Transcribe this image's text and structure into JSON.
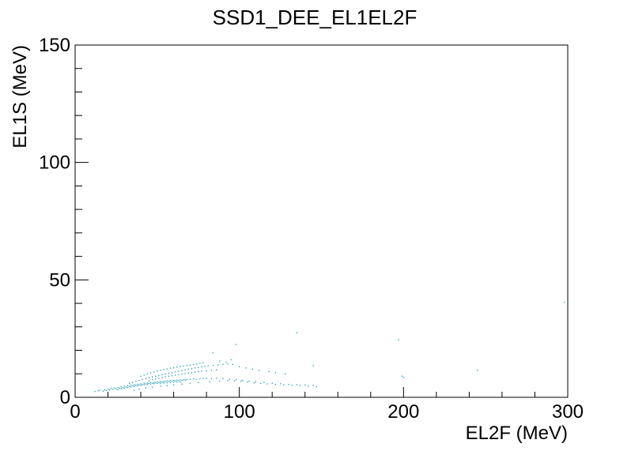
{
  "chart_data": {
    "type": "scatter",
    "title": "SSD1_DEE_EL1EL2F",
    "xlabel": "EL2F (MeV)",
    "ylabel": "EL1S (MeV)",
    "xlim": [
      0,
      300
    ],
    "ylim": [
      0,
      150
    ],
    "x_major_ticks": [
      0,
      100,
      200,
      300
    ],
    "x_tick_labels": [
      "0",
      "100",
      "200",
      "300"
    ],
    "y_major_ticks": [
      0,
      50,
      100,
      150
    ],
    "y_tick_labels": [
      "0",
      "50",
      "100",
      "150"
    ],
    "grid": false,
    "legend": "none",
    "marker_color": "#1496b4",
    "series": [
      {
        "points": [
          [
            12,
            2.5
          ],
          [
            14,
            2.8
          ],
          [
            15,
            3.0
          ],
          [
            17,
            2.6
          ],
          [
            18,
            3.2
          ],
          [
            19,
            2.9
          ],
          [
            20,
            3.5
          ],
          [
            21,
            3.1
          ],
          [
            22,
            3.8
          ],
          [
            23,
            3.4
          ],
          [
            24,
            4.0
          ],
          [
            25,
            3.6
          ],
          [
            26,
            4.2
          ],
          [
            27,
            3.9
          ],
          [
            28,
            4.5
          ],
          [
            29,
            4.1
          ],
          [
            30,
            4.8
          ],
          [
            31,
            4.3
          ],
          [
            32,
            5.0
          ],
          [
            33,
            4.6
          ],
          [
            34,
            5.2
          ],
          [
            35,
            4.9
          ],
          [
            36,
            5.4
          ],
          [
            37,
            5.1
          ],
          [
            38,
            5.6
          ],
          [
            39,
            5.3
          ],
          [
            40,
            5.8
          ],
          [
            41,
            5.5
          ],
          [
            42,
            6.0
          ],
          [
            43,
            5.7
          ],
          [
            44,
            6.1
          ],
          [
            45,
            5.9
          ],
          [
            46,
            6.3
          ],
          [
            47,
            6.0
          ],
          [
            48,
            6.4
          ],
          [
            49,
            6.2
          ],
          [
            50,
            6.6
          ],
          [
            51,
            6.3
          ],
          [
            52,
            6.7
          ],
          [
            53,
            6.5
          ],
          [
            54,
            6.8
          ],
          [
            55,
            6.6
          ],
          [
            56,
            7.0
          ],
          [
            57,
            6.8
          ],
          [
            58,
            7.1
          ],
          [
            59,
            6.9
          ],
          [
            60,
            7.2
          ],
          [
            61,
            7.0
          ],
          [
            62,
            7.3
          ],
          [
            63,
            7.1
          ],
          [
            64,
            7.4
          ],
          [
            65,
            7.2
          ],
          [
            66,
            7.5
          ],
          [
            67,
            7.3
          ],
          [
            68,
            7.6
          ],
          [
            70,
            7.7
          ],
          [
            72,
            7.8
          ],
          [
            74,
            7.6
          ],
          [
            76,
            7.9
          ],
          [
            78,
            8.0
          ],
          [
            80,
            8.1
          ],
          [
            83,
            7.9
          ],
          [
            86,
            8.2
          ],
          [
            90,
            8.0
          ],
          [
            94,
            7.8
          ],
          [
            98,
            7.5
          ],
          [
            102,
            7.2
          ],
          [
            106,
            6.9
          ],
          [
            110,
            6.6
          ],
          [
            115,
            6.3
          ],
          [
            120,
            6.0
          ],
          [
            125,
            5.8
          ],
          [
            130,
            5.5
          ],
          [
            135,
            5.4
          ],
          [
            140,
            5.2
          ],
          [
            145,
            5.0
          ],
          [
            26,
            3.2
          ],
          [
            28,
            3.6
          ],
          [
            30,
            3.9
          ],
          [
            32,
            4.2
          ],
          [
            34,
            4.4
          ],
          [
            36,
            4.7
          ],
          [
            38,
            4.9
          ],
          [
            40,
            5.1
          ],
          [
            42,
            5.3
          ],
          [
            44,
            5.5
          ],
          [
            46,
            5.6
          ],
          [
            48,
            5.8
          ],
          [
            50,
            5.9
          ],
          [
            52,
            6.0
          ],
          [
            54,
            6.1
          ],
          [
            56,
            6.2
          ],
          [
            58,
            6.3
          ],
          [
            60,
            6.4
          ],
          [
            62,
            6.5
          ],
          [
            64,
            6.5
          ],
          [
            33,
            6.0
          ],
          [
            35,
            6.4
          ],
          [
            37,
            6.8
          ],
          [
            39,
            7.2
          ],
          [
            41,
            7.6
          ],
          [
            43,
            8.0
          ],
          [
            45,
            8.4
          ],
          [
            47,
            8.7
          ],
          [
            49,
            9.0
          ],
          [
            51,
            9.3
          ],
          [
            53,
            9.6
          ],
          [
            55,
            9.9
          ],
          [
            57,
            10.2
          ],
          [
            59,
            10.5
          ],
          [
            61,
            10.8
          ],
          [
            63,
            11.1
          ],
          [
            65,
            11.4
          ],
          [
            67,
            11.7
          ],
          [
            69,
            12.0
          ],
          [
            71,
            12.2
          ],
          [
            73,
            12.5
          ],
          [
            75,
            12.7
          ],
          [
            77,
            13.0
          ],
          [
            79,
            13.2
          ],
          [
            81,
            13.4
          ],
          [
            84,
            13.6
          ],
          [
            87,
            13.8
          ],
          [
            90,
            14.0
          ],
          [
            93,
            14.2
          ],
          [
            96,
            14.0
          ],
          [
            40,
            9.0
          ],
          [
            42,
            9.5
          ],
          [
            44,
            10.0
          ],
          [
            46,
            10.4
          ],
          [
            48,
            10.8
          ],
          [
            50,
            11.2
          ],
          [
            52,
            11.5
          ],
          [
            54,
            11.8
          ],
          [
            56,
            12.1
          ],
          [
            58,
            12.4
          ],
          [
            60,
            12.6
          ],
          [
            62,
            12.9
          ],
          [
            64,
            13.1
          ],
          [
            66,
            13.3
          ],
          [
            68,
            13.5
          ],
          [
            70,
            13.7
          ],
          [
            72,
            14.0
          ],
          [
            74,
            14.2
          ],
          [
            76,
            14.5
          ],
          [
            78,
            14.8
          ],
          [
            45,
            7.0
          ],
          [
            47,
            7.5
          ],
          [
            49,
            7.8
          ],
          [
            51,
            8.1
          ],
          [
            53,
            8.4
          ],
          [
            55,
            8.7
          ],
          [
            57,
            9.0
          ],
          [
            59,
            9.2
          ],
          [
            61,
            9.5
          ],
          [
            63,
            9.7
          ],
          [
            65,
            9.9
          ],
          [
            67,
            10.1
          ],
          [
            69,
            10.3
          ],
          [
            71,
            10.5
          ],
          [
            73,
            10.7
          ],
          [
            75,
            10.9
          ],
          [
            77,
            11.1
          ],
          [
            80,
            11.3
          ],
          [
            83,
            11.5
          ],
          [
            86,
            11.7
          ],
          [
            88,
            15.5
          ],
          [
            92,
            15.0
          ],
          [
            95,
            16.0
          ],
          [
            100,
            13.0
          ],
          [
            104,
            12.5
          ],
          [
            108,
            12.0
          ],
          [
            112,
            11.5
          ],
          [
            118,
            11.0
          ],
          [
            122,
            10.5
          ],
          [
            128,
            10.0
          ],
          [
            84,
            19.0
          ],
          [
            98,
            22.5
          ],
          [
            135,
            27.5
          ],
          [
            145,
            13.5
          ],
          [
            197,
            24.5
          ],
          [
            199,
            9.0
          ],
          [
            200,
            8.5
          ],
          [
            245,
            11.5
          ],
          [
            298,
            40.5
          ],
          [
            36,
            3.0
          ],
          [
            39,
            3.4
          ],
          [
            43,
            3.9
          ],
          [
            47,
            4.3
          ],
          [
            52,
            4.8
          ],
          [
            56,
            5.0
          ],
          [
            60,
            5.3
          ],
          [
            65,
            5.6
          ],
          [
            70,
            6.0
          ],
          [
            75,
            6.3
          ],
          [
            82,
            6.6
          ],
          [
            88,
            6.9
          ],
          [
            93,
            7.1
          ],
          [
            97,
            7.0
          ],
          [
            101,
            6.8
          ],
          [
            105,
            6.5
          ],
          [
            109,
            6.2
          ],
          [
            113,
            5.9
          ],
          [
            117,
            5.7
          ],
          [
            122,
            5.5
          ],
          [
            127,
            5.3
          ],
          [
            132,
            5.1
          ],
          [
            137,
            5.0
          ],
          [
            142,
            4.8
          ],
          [
            147,
            4.6
          ]
        ]
      }
    ]
  }
}
